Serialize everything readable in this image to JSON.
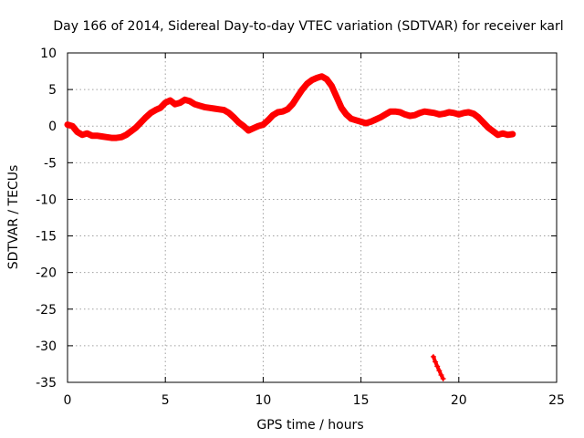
{
  "chart_data": {
    "type": "scatter",
    "title": "Day 166 of 2014, Sidereal Day-to-day VTEC variation (SDTVAR) for receiver karl",
    "xlabel": "GPS time / hours",
    "ylabel": "SDTVAR / TECUs",
    "xlim": [
      0,
      25
    ],
    "ylim": [
      -35,
      10
    ],
    "xticks": [
      0,
      5,
      10,
      15,
      20,
      25
    ],
    "yticks": [
      -35,
      -30,
      -25,
      -20,
      -15,
      -10,
      -5,
      0,
      5,
      10
    ],
    "grid": true,
    "marker": "+",
    "series": [
      {
        "name": "SDTVAR",
        "color": "#ff0000",
        "points": [
          [
            0.0,
            0.2
          ],
          [
            0.25,
            0.0
          ],
          [
            0.5,
            -0.8
          ],
          [
            0.75,
            -1.2
          ],
          [
            1.0,
            -1.0
          ],
          [
            1.25,
            -1.3
          ],
          [
            1.5,
            -1.3
          ],
          [
            1.75,
            -1.4
          ],
          [
            2.0,
            -1.5
          ],
          [
            2.25,
            -1.6
          ],
          [
            2.5,
            -1.6
          ],
          [
            2.75,
            -1.5
          ],
          [
            3.0,
            -1.2
          ],
          [
            3.25,
            -0.7
          ],
          [
            3.5,
            -0.2
          ],
          [
            3.75,
            0.5
          ],
          [
            4.0,
            1.2
          ],
          [
            4.25,
            1.8
          ],
          [
            4.5,
            2.2
          ],
          [
            4.75,
            2.5
          ],
          [
            5.0,
            3.2
          ],
          [
            5.25,
            3.5
          ],
          [
            5.5,
            3.0
          ],
          [
            5.75,
            3.2
          ],
          [
            6.0,
            3.6
          ],
          [
            6.25,
            3.4
          ],
          [
            6.5,
            3.0
          ],
          [
            6.75,
            2.8
          ],
          [
            7.0,
            2.6
          ],
          [
            7.25,
            2.5
          ],
          [
            7.5,
            2.4
          ],
          [
            7.75,
            2.3
          ],
          [
            8.0,
            2.2
          ],
          [
            8.25,
            1.8
          ],
          [
            8.5,
            1.2
          ],
          [
            8.75,
            0.5
          ],
          [
            9.0,
            0.0
          ],
          [
            9.25,
            -0.6
          ],
          [
            9.5,
            -0.3
          ],
          [
            9.75,
            0.0
          ],
          [
            10.0,
            0.2
          ],
          [
            10.25,
            0.8
          ],
          [
            10.5,
            1.5
          ],
          [
            10.75,
            1.9
          ],
          [
            11.0,
            2.0
          ],
          [
            11.25,
            2.3
          ],
          [
            11.5,
            3.0
          ],
          [
            11.75,
            4.0
          ],
          [
            12.0,
            5.0
          ],
          [
            12.25,
            5.8
          ],
          [
            12.5,
            6.3
          ],
          [
            12.75,
            6.6
          ],
          [
            13.0,
            6.8
          ],
          [
            13.25,
            6.4
          ],
          [
            13.5,
            5.5
          ],
          [
            13.75,
            4.0
          ],
          [
            14.0,
            2.5
          ],
          [
            14.25,
            1.6
          ],
          [
            14.5,
            1.0
          ],
          [
            14.75,
            0.8
          ],
          [
            15.0,
            0.6
          ],
          [
            15.25,
            0.4
          ],
          [
            15.5,
            0.6
          ],
          [
            15.75,
            0.9
          ],
          [
            16.0,
            1.2
          ],
          [
            16.25,
            1.6
          ],
          [
            16.5,
            2.0
          ],
          [
            16.75,
            2.0
          ],
          [
            17.0,
            1.9
          ],
          [
            17.25,
            1.6
          ],
          [
            17.5,
            1.4
          ],
          [
            17.75,
            1.5
          ],
          [
            18.0,
            1.8
          ],
          [
            18.25,
            2.0
          ],
          [
            18.5,
            1.9
          ],
          [
            18.75,
            1.8
          ],
          [
            19.0,
            1.6
          ],
          [
            19.25,
            1.7
          ],
          [
            19.5,
            1.9
          ],
          [
            19.75,
            1.8
          ],
          [
            20.0,
            1.6
          ],
          [
            20.25,
            1.8
          ],
          [
            20.5,
            1.9
          ],
          [
            20.75,
            1.7
          ],
          [
            21.0,
            1.2
          ],
          [
            21.25,
            0.5
          ],
          [
            21.5,
            -0.2
          ],
          [
            21.75,
            -0.7
          ],
          [
            22.0,
            -1.2
          ],
          [
            22.25,
            -1.0
          ],
          [
            22.5,
            -1.2
          ],
          [
            22.75,
            -1.1
          ],
          [
            18.7,
            -31.5
          ],
          [
            18.8,
            -32.2
          ],
          [
            18.9,
            -32.8
          ],
          [
            19.0,
            -33.4
          ],
          [
            19.1,
            -34.0
          ],
          [
            19.2,
            -34.5
          ]
        ]
      }
    ]
  }
}
